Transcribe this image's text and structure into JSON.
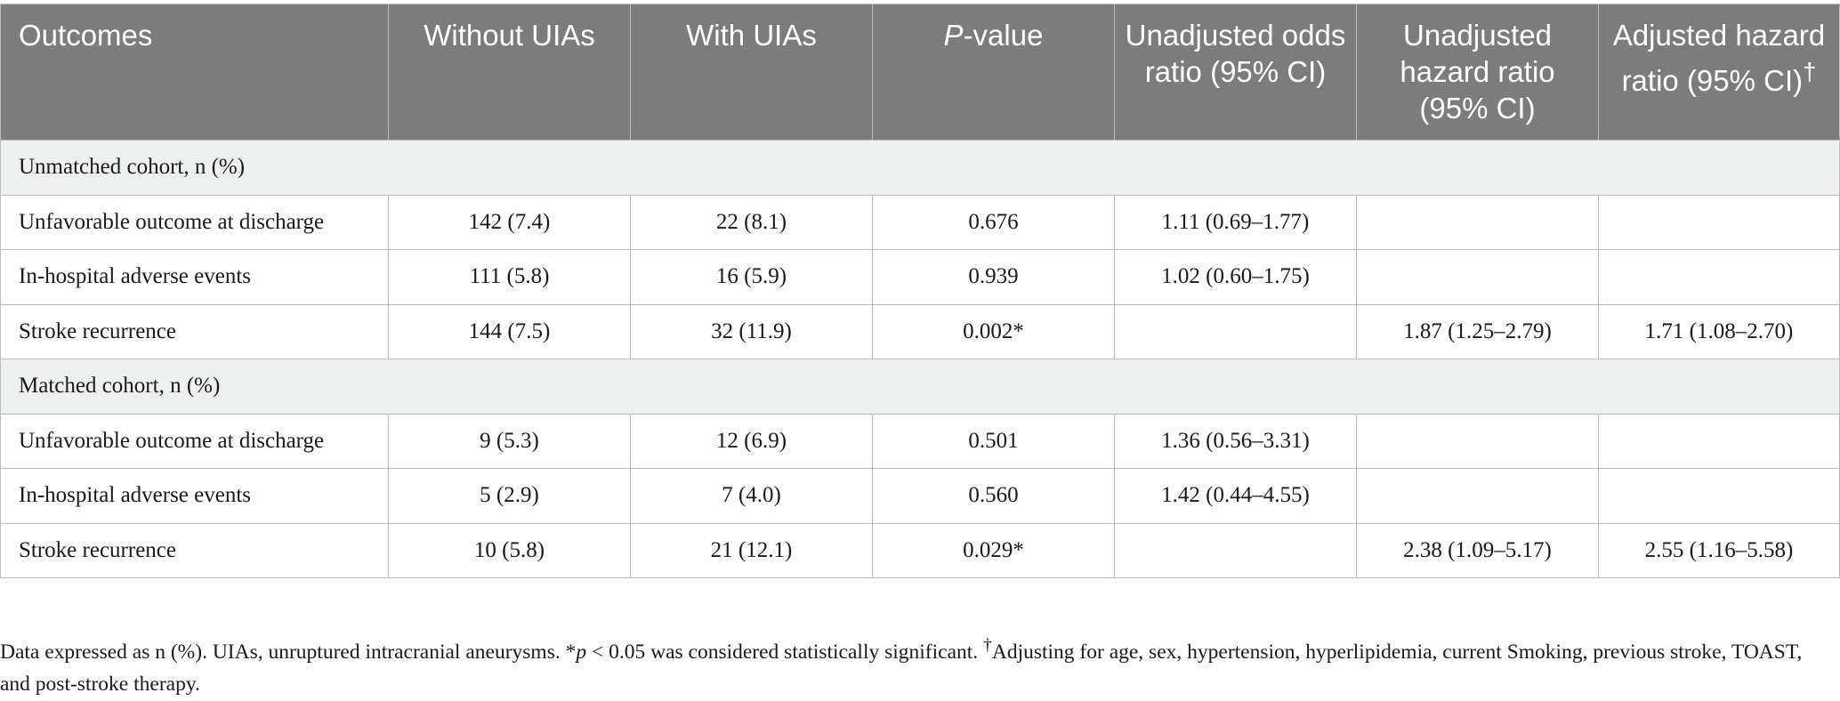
{
  "table": {
    "headers": [
      {
        "text": "Outcomes"
      },
      {
        "text": "Without UIAs"
      },
      {
        "text": "With UIAs"
      },
      {
        "prefix": "P",
        "text": "-value"
      },
      {
        "text": "Unadjusted odds ratio (95% CI)"
      },
      {
        "text": "Unadjusted hazard ratio (95% CI)"
      },
      {
        "text": "Adjusted hazard ratio (95% CI)",
        "suffix": "†"
      }
    ],
    "sections": [
      {
        "title": "Unmatched cohort, n (%)",
        "rows": [
          [
            "Unfavorable outcome at discharge",
            "142 (7.4)",
            "22 (8.1)",
            "0.676",
            "1.11 (0.69–1.77)",
            "",
            ""
          ],
          [
            "In-hospital adverse events",
            "111 (5.8)",
            "16 (5.9)",
            "0.939",
            "1.02 (0.60–1.75)",
            "",
            ""
          ],
          [
            "Stroke recurrence",
            "144 (7.5)",
            "32 (11.9)",
            "0.002*",
            "",
            "1.87 (1.25–2.79)",
            "1.71 (1.08–2.70)"
          ]
        ]
      },
      {
        "title": "Matched cohort, n (%)",
        "rows": [
          [
            "Unfavorable outcome at discharge",
            "9 (5.3)",
            "12 (6.9)",
            "0.501",
            "1.36 (0.56–3.31)",
            "",
            ""
          ],
          [
            "In-hospital adverse events",
            "5 (2.9)",
            "7 (4.0)",
            "0.560",
            "1.42 (0.44–4.55)",
            "",
            ""
          ],
          [
            "Stroke recurrence",
            "10 (5.8)",
            "21 (12.1)",
            "0.029*",
            "",
            "2.38 (1.09–5.17)",
            "2.55 (1.16–5.58)"
          ]
        ]
      }
    ]
  },
  "footnote": {
    "part1": "Data expressed as n (%). UIAs, unruptured intracranial aneurysms. *",
    "p_symbol": "p",
    "part2": " < 0.05 was considered statistically significant. ",
    "dagger": "†",
    "part3": "Adjusting for age, sex, hypertension, hyperlipidemia, current Smoking, previous stroke, TOAST, and post-stroke therapy."
  }
}
